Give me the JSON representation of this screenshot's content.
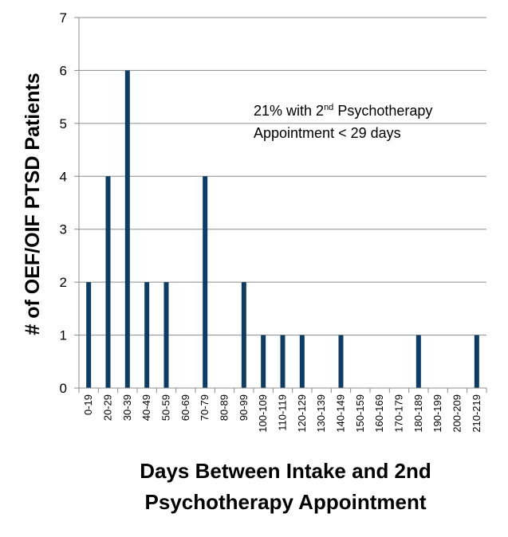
{
  "chart_data": {
    "type": "bar",
    "categories": [
      "0-19",
      "20-29",
      "30-39",
      "40-49",
      "50-59",
      "60-69",
      "70-79",
      "80-89",
      "90-99",
      "100-109",
      "110-119",
      "120-129",
      "130-139",
      "140-149",
      "150-159",
      "160-169",
      "170-179",
      "180-189",
      "190-199",
      "200-209",
      "210-219"
    ],
    "values": [
      2,
      4,
      6,
      2,
      2,
      0,
      4,
      0,
      2,
      1,
      1,
      1,
      0,
      1,
      0,
      0,
      0,
      1,
      0,
      0,
      1
    ],
    "title": "",
    "ylabel": "# of OEF/OIF PTSD Patients",
    "xlabel_line1": "Days Between Intake and 2nd",
    "xlabel_line2": "Psychotherapy Appointment",
    "ylim": [
      0,
      7
    ],
    "yticks": [
      "0",
      "1",
      "2",
      "3",
      "4",
      "5",
      "6",
      "7"
    ],
    "grid": true,
    "bar_color": "#0b3d66",
    "annotation": {
      "line1_pre": "21% with 2",
      "line1_sup": "nd",
      "line1_post": " Psychotherapy",
      "line2": "Appointment < 29 days"
    }
  }
}
